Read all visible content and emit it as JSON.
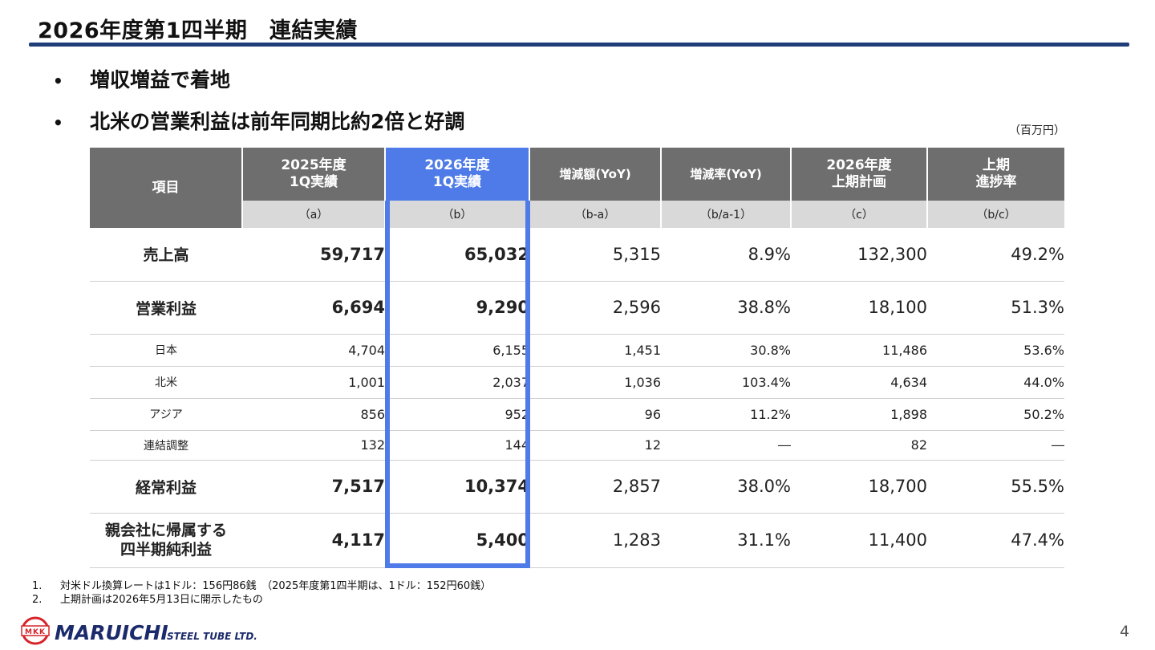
{
  "title": "2026年度第1四半期　連結実績",
  "bullets": [
    "増収増益で着地",
    "北米の営業利益は前年同期比約2倍と好調"
  ],
  "bullet_symbol": "•",
  "unit": "（百万円）",
  "table": {
    "headers": [
      "項目",
      "2025年度\n1Q実績",
      "2026年度\n1Q実績",
      "増減額(YoY)",
      "増減率(YoY)",
      "2026年度\n上期計画",
      "上期\n進捗率"
    ],
    "subheaders": [
      "（a）",
      "（b）",
      "（b-a）",
      "（b/a-1）",
      "（c）",
      "（b/c）"
    ],
    "rows": [
      {
        "label": "売上高",
        "values": [
          "59,717",
          "65,032",
          "5,315",
          "8.9%",
          "132,300",
          "49.2%"
        ]
      },
      {
        "label": "営業利益",
        "values": [
          "6,694",
          "9,290",
          "2,596",
          "38.8%",
          "18,100",
          "51.3%"
        ]
      },
      {
        "label": "日本",
        "values": [
          "4,704",
          "6,155",
          "1,451",
          "30.8%",
          "11,486",
          "53.6%"
        ]
      },
      {
        "label": "北米",
        "values": [
          "1,001",
          "2,037",
          "1,036",
          "103.4%",
          "4,634",
          "44.0%"
        ]
      },
      {
        "label": "アジア",
        "values": [
          "856",
          "952",
          "96",
          "11.2%",
          "1,898",
          "50.2%"
        ]
      },
      {
        "label": "連結調整",
        "values": [
          "132",
          "144",
          "12",
          "―",
          "82",
          "―"
        ]
      },
      {
        "label": "経常利益",
        "values": [
          "7,517",
          "10,374",
          "2,857",
          "38.0%",
          "18,700",
          "55.5%"
        ]
      },
      {
        "label": "親会社に帰属する\n四半期純利益",
        "values": [
          "4,117",
          "5,400",
          "1,283",
          "31.1%",
          "11,400",
          "47.4%"
        ]
      }
    ]
  },
  "notes": [
    {
      "num": "1.",
      "text": "対米ドル換算レートは1ドル：156円86銭　（2025年度第1四半期は、1ドル：152円60銭）"
    },
    {
      "num": "2.",
      "text": "上期計画は2026年5月13日に開示したもの"
    }
  ],
  "logo": {
    "mark": "MKK",
    "name": "MARUICHI",
    "suffix": "STEEL TUBE LTD."
  },
  "page_number": "4",
  "colors": {
    "accent": "#4f7be8",
    "title_rule": "#1f3d78",
    "header_gray": "#6e6e6e",
    "subheader_gray": "#d9d9d9",
    "logo_red": "#d7232a",
    "logo_navy": "#1b2a6b"
  }
}
